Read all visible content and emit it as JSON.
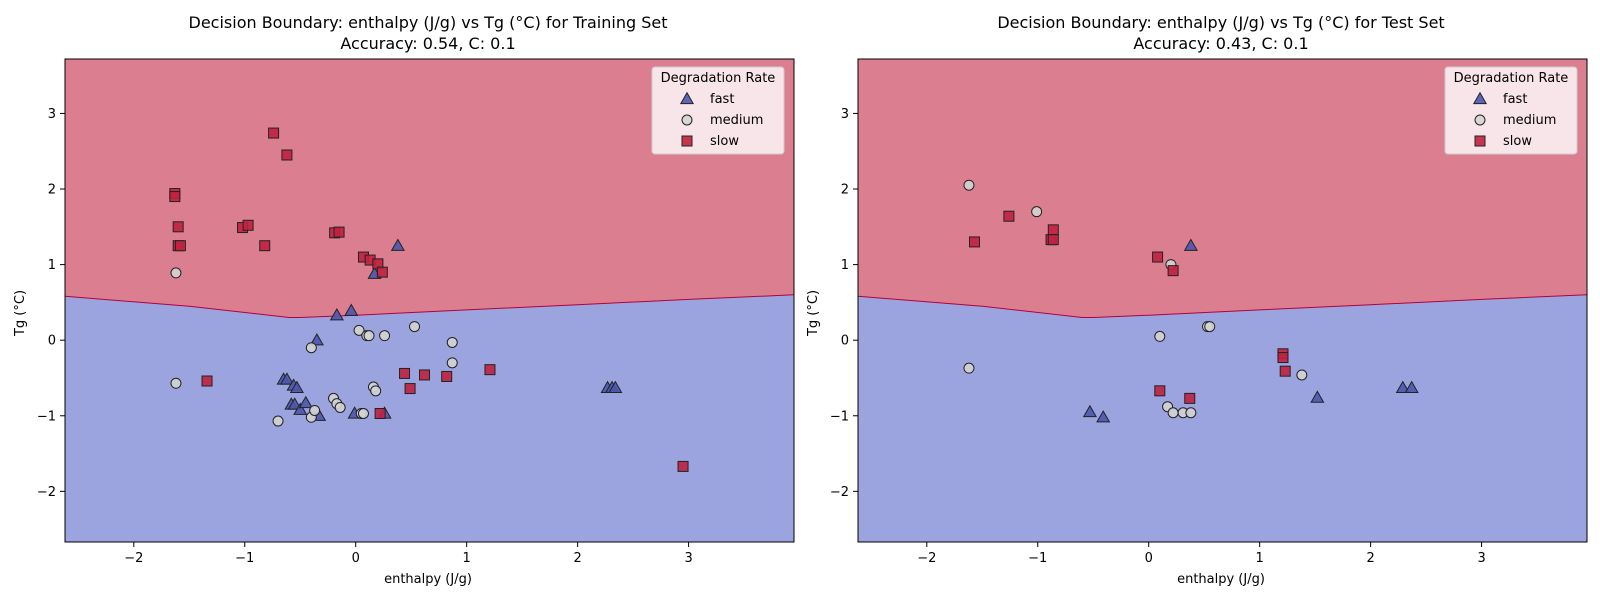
{
  "colors": {
    "region_slow": "#db7f90",
    "region_fast": "#9ba4de",
    "boundary": "#b3003d",
    "fast_fill": "#4c56ad",
    "medium_fill": "#d4d4d4",
    "slow_fill": "#c0213f",
    "edge": "#222222"
  },
  "chart_data": [
    {
      "type": "scatter",
      "title_line1": "Decision Boundary: enthalpy (J/g) vs Tg (°C) for Training Set",
      "title_line2": "Accuracy: 0.54, C: 0.1",
      "xlabel": "enthalpy (J/g)",
      "ylabel": "Tg (°C)",
      "xlim": [
        -2.62,
        3.95
      ],
      "ylim": [
        -2.67,
        3.72
      ],
      "xticks": [
        -2,
        -1,
        0,
        1,
        2,
        3
      ],
      "yticks": [
        -2,
        -1,
        0,
        1,
        2,
        3
      ],
      "grid": false,
      "legend_title": "Degradation Rate",
      "legend_position": "top-right",
      "boundary": [
        [
          -2.62,
          0.58
        ],
        [
          -1.5,
          0.45
        ],
        [
          -0.6,
          0.3
        ],
        [
          -0.5,
          0.3
        ],
        [
          0,
          0.33
        ],
        [
          1,
          0.4
        ],
        [
          2,
          0.47
        ],
        [
          3,
          0.54
        ],
        [
          3.95,
          0.6
        ]
      ],
      "regions": {
        "above": "slow",
        "below": "fast"
      },
      "series": [
        {
          "name": "fast",
          "marker": "triangle",
          "points": [
            [
              0.38,
              1.25
            ],
            [
              0.17,
              0.88
            ],
            [
              -0.17,
              0.33
            ],
            [
              -0.04,
              0.39
            ],
            [
              -0.35,
              0.0
            ],
            [
              -0.65,
              -0.52
            ],
            [
              -0.62,
              -0.52
            ],
            [
              -0.56,
              -0.6
            ],
            [
              -0.53,
              -0.63
            ],
            [
              -0.58,
              -0.85
            ],
            [
              -0.55,
              -0.85
            ],
            [
              -0.5,
              -0.92
            ],
            [
              -0.45,
              -0.83
            ],
            [
              -0.33,
              -1.0
            ],
            [
              -0.01,
              -0.97
            ],
            [
              0.26,
              -0.97
            ],
            [
              2.27,
              -0.63
            ],
            [
              2.31,
              -0.63
            ],
            [
              2.34,
              -0.63
            ]
          ]
        },
        {
          "name": "medium",
          "marker": "circle",
          "points": [
            [
              -1.62,
              0.89
            ],
            [
              -1.62,
              -0.57
            ],
            [
              0.03,
              0.13
            ],
            [
              0.1,
              0.06
            ],
            [
              0.12,
              0.06
            ],
            [
              0.26,
              0.06
            ],
            [
              0.53,
              0.18
            ],
            [
              0.87,
              -0.03
            ],
            [
              0.87,
              -0.3
            ],
            [
              -0.4,
              -0.1
            ],
            [
              -0.7,
              -1.07
            ],
            [
              -0.4,
              -1.02
            ],
            [
              -0.37,
              -0.93
            ],
            [
              -0.2,
              -0.77
            ],
            [
              -0.17,
              -0.84
            ],
            [
              -0.14,
              -0.89
            ],
            [
              0.05,
              -0.97
            ],
            [
              0.07,
              -0.97
            ],
            [
              0.16,
              -0.62
            ],
            [
              0.18,
              -0.67
            ]
          ]
        },
        {
          "name": "slow",
          "marker": "square",
          "points": [
            [
              -0.74,
              2.74
            ],
            [
              -0.62,
              2.45
            ],
            [
              -1.63,
              1.94
            ],
            [
              -1.63,
              1.9
            ],
            [
              -1.6,
              1.5
            ],
            [
              -1.6,
              1.25
            ],
            [
              -1.58,
              1.25
            ],
            [
              -1.02,
              1.49
            ],
            [
              -0.97,
              1.52
            ],
            [
              -0.82,
              1.25
            ],
            [
              -0.19,
              1.42
            ],
            [
              -0.15,
              1.43
            ],
            [
              0.07,
              1.1
            ],
            [
              0.13,
              1.06
            ],
            [
              0.2,
              1.01
            ],
            [
              0.24,
              0.9
            ],
            [
              -1.34,
              -0.54
            ],
            [
              0.44,
              -0.44
            ],
            [
              0.49,
              -0.64
            ],
            [
              0.62,
              -0.46
            ],
            [
              0.82,
              -0.48
            ],
            [
              1.21,
              -0.39
            ],
            [
              0.22,
              -0.97
            ],
            [
              2.95,
              -1.67
            ]
          ]
        }
      ]
    },
    {
      "type": "scatter",
      "title_line1": "Decision Boundary: enthalpy (J/g) vs Tg (°C) for Test Set",
      "title_line2": "Accuracy: 0.43, C: 0.1",
      "xlabel": "enthalpy (J/g)",
      "ylabel": "Tg (°C)",
      "xlim": [
        -2.62,
        3.95
      ],
      "ylim": [
        -2.67,
        3.72
      ],
      "xticks": [
        -2,
        -1,
        0,
        1,
        2,
        3
      ],
      "yticks": [
        -2,
        -1,
        0,
        1,
        2,
        3
      ],
      "grid": false,
      "legend_title": "Degradation Rate",
      "legend_position": "top-right",
      "boundary": [
        [
          -2.62,
          0.58
        ],
        [
          -1.5,
          0.45
        ],
        [
          -0.6,
          0.3
        ],
        [
          -0.5,
          0.3
        ],
        [
          0,
          0.33
        ],
        [
          1,
          0.4
        ],
        [
          2,
          0.47
        ],
        [
          3,
          0.54
        ],
        [
          3.95,
          0.6
        ]
      ],
      "regions": {
        "above": "slow",
        "below": "fast"
      },
      "series": [
        {
          "name": "fast",
          "marker": "triangle",
          "points": [
            [
              0.38,
              1.25
            ],
            [
              -0.53,
              -0.95
            ],
            [
              -0.41,
              -1.02
            ],
            [
              1.52,
              -0.76
            ],
            [
              2.29,
              -0.63
            ],
            [
              2.37,
              -0.63
            ]
          ]
        },
        {
          "name": "medium",
          "marker": "circle",
          "points": [
            [
              -1.62,
              2.05
            ],
            [
              -1.01,
              1.7
            ],
            [
              0.2,
              1.0
            ],
            [
              -1.62,
              -0.37
            ],
            [
              0.1,
              0.05
            ],
            [
              0.53,
              0.18
            ],
            [
              0.55,
              0.18
            ],
            [
              1.38,
              -0.46
            ],
            [
              0.17,
              -0.88
            ],
            [
              0.22,
              -0.96
            ],
            [
              0.31,
              -0.96
            ],
            [
              0.38,
              -0.96
            ]
          ]
        },
        {
          "name": "slow",
          "marker": "square",
          "points": [
            [
              -1.26,
              1.64
            ],
            [
              -1.57,
              1.3
            ],
            [
              -0.86,
              1.46
            ],
            [
              -0.88,
              1.33
            ],
            [
              -0.86,
              1.33
            ],
            [
              0.08,
              1.1
            ],
            [
              0.22,
              0.92
            ],
            [
              1.21,
              -0.18
            ],
            [
              1.21,
              -0.23
            ],
            [
              1.23,
              -0.41
            ],
            [
              0.1,
              -0.67
            ],
            [
              0.37,
              -0.77
            ]
          ]
        }
      ]
    }
  ]
}
